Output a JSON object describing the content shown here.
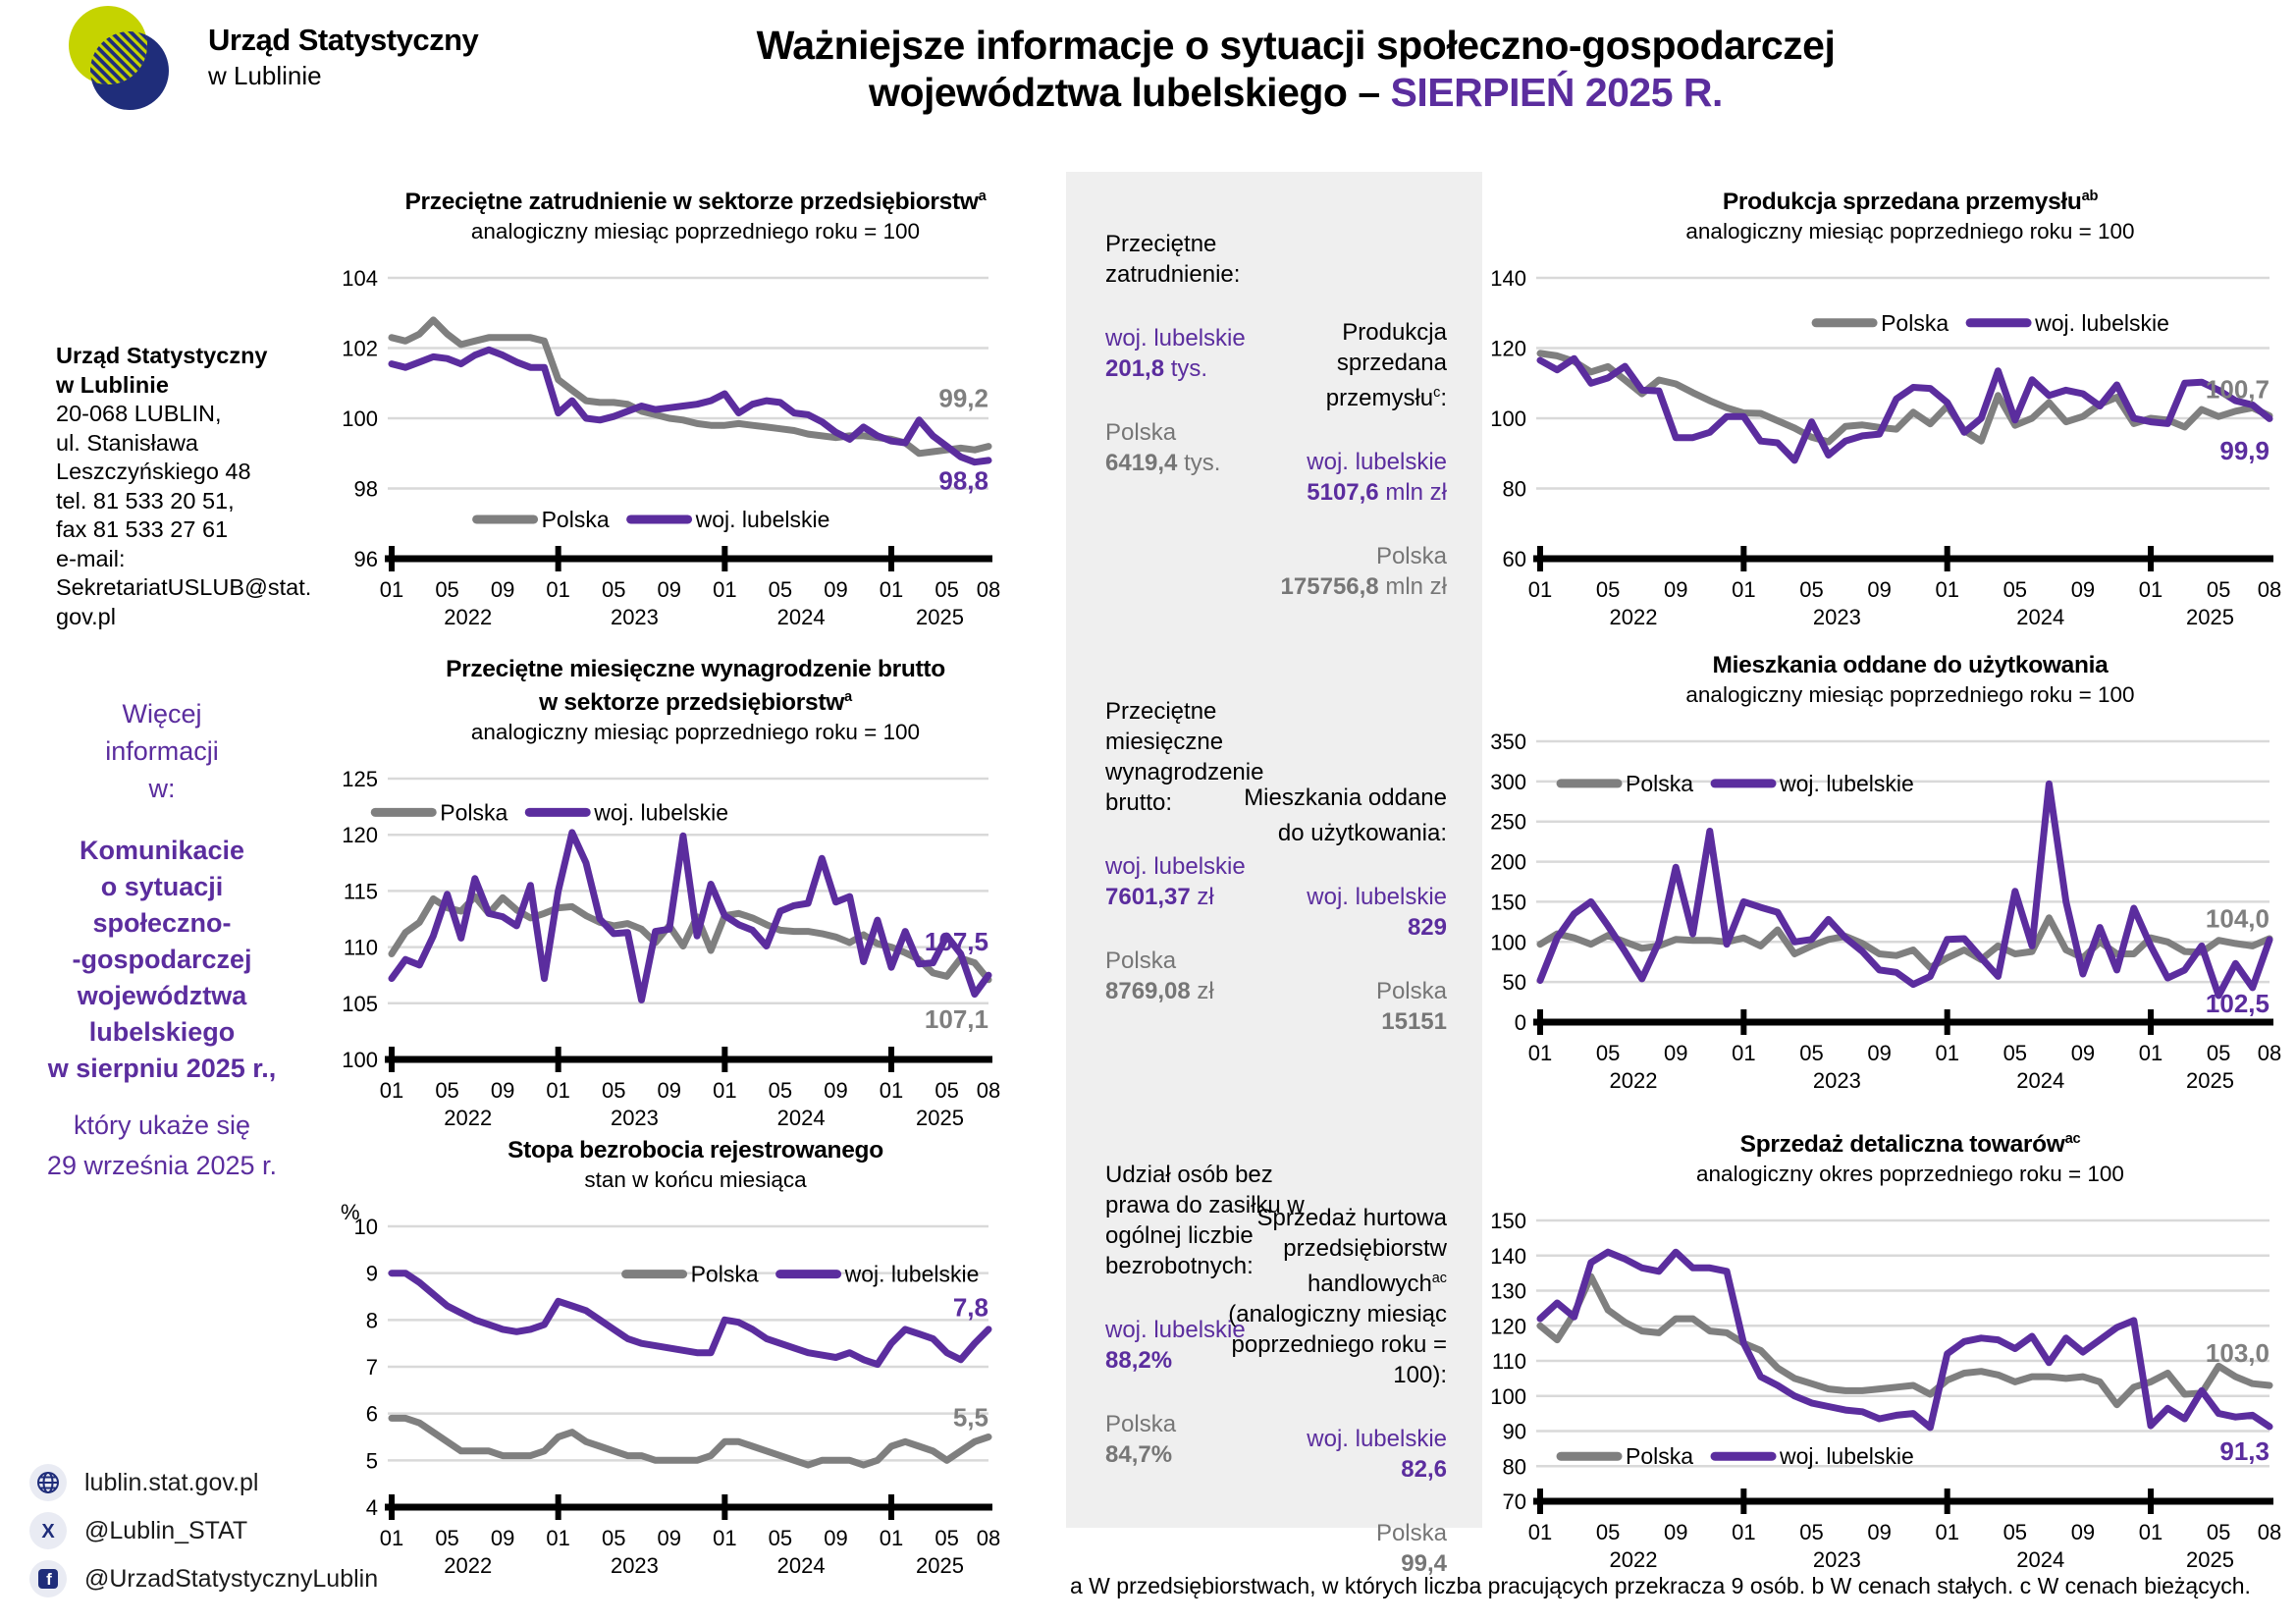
{
  "colors": {
    "purple": "#5b2d9e",
    "gray": "#7f7f7f",
    "navy": "#1f2d7a",
    "lime": "#c5d300",
    "panel_bg": "#efefef",
    "grid": "#d9d9d9"
  },
  "header": {
    "logo_line1": "Urząd Statystyczny",
    "logo_line2": "w Lublinie",
    "title_line1": "Ważniejsze informacje o sytuacji społeczno-gospodarczej",
    "title_line2_pre": "województwa lubelskiego  –  ",
    "title_line2_accent": "SIERPIEŃ 2025 R."
  },
  "sidebar": {
    "office_name": [
      "Urząd Statystyczny",
      "w Lublinie"
    ],
    "address_lines": [
      "20-068 LUBLIN,",
      "ul. Stanisława",
      "Leszczyńskiego 48",
      "tel. 81 533 20 51,",
      "fax 81 533 27 61",
      "e-mail:",
      "SekretariatUSLUB@stat.",
      "gov.pl"
    ],
    "more_info_lines": [
      "Więcej",
      "informacji",
      "w:"
    ],
    "bulletin_lines": [
      "Komunikacie",
      "o sytuacji",
      "społeczno-",
      "-gospodarczej",
      "województwa",
      "lubelskiego",
      "w sierpniu 2025 r.,"
    ],
    "release_lines": [
      "który ukaże się",
      "29 września 2025 r."
    ],
    "social": [
      {
        "icon": "globe-icon",
        "label": "lublin.stat.gov.pl"
      },
      {
        "icon": "x-icon",
        "label": "@Lublin_STAT"
      },
      {
        "icon": "facebook-icon",
        "label": "@UrzadStatystycznyLublin"
      }
    ]
  },
  "panel": {
    "sections": [
      {
        "left": {
          "title": "Przeciętne zatrudnienie:",
          "items": [
            {
              "label": "woj. lubelskie",
              "value": "201,8",
              "unit": " tys."
            },
            {
              "label": "Polska",
              "value": "6419,4",
              "unit": " tys."
            }
          ]
        },
        "right": {
          "t1": "Produkcja sprzedana przemysłu",
          "sup": "c",
          "t2": ":",
          "items": [
            {
              "label": "woj. lubelskie",
              "value": "5107,6",
              "unit": " mln zł"
            },
            {
              "label": "Polska",
              "value": "175756,8",
              "unit": " mln zł"
            }
          ]
        }
      },
      {
        "left": {
          "title": "Przeciętne miesięczne wynagrodzenie brutto:",
          "items": [
            {
              "label": "woj. lubelskie",
              "value": "7601,37",
              "unit": " zł"
            },
            {
              "label": "Polska",
              "value": "8769,08",
              "unit": " zł"
            }
          ]
        },
        "right": {
          "t1": "Mieszkania oddane do użytkowania:",
          "sup": "",
          "t2": "",
          "items": [
            {
              "label": "woj. lubelskie",
              "value": "829",
              "unit": ""
            },
            {
              "label": "Polska",
              "value": "15151",
              "unit": ""
            }
          ]
        }
      },
      {
        "left": {
          "title": "Udział osób bez prawa do zasiłku w ogólnej liczbie bezrobotnych:",
          "items": [
            {
              "label": "woj. lubelskie",
              "value": "88,2%",
              "unit": ""
            },
            {
              "label": "Polska",
              "value": "84,7%",
              "unit": ""
            }
          ]
        },
        "right": {
          "t1": "Sprzedaż hurtowa przedsiębiorstw handlowych",
          "sup": "ac",
          "t2": " (analogiczny miesiąc poprzedniego roku = 100):",
          "items": [
            {
              "label": "woj. lubelskie",
              "value": "82,6",
              "unit": ""
            },
            {
              "label": "Polska",
              "value": "99,4",
              "unit": ""
            }
          ]
        }
      }
    ]
  },
  "footnote": "a W przedsiębiorstwach, w których liczba pracujących przekracza 9 osób.  b W cenach stałych.  c W cenach bieżących.",
  "xaxis": {
    "n": 44,
    "month_labels": [
      "01",
      "05",
      "09",
      "01",
      "05",
      "09",
      "01",
      "05",
      "09",
      "01",
      "05",
      "08"
    ],
    "month_positions": [
      0,
      4,
      8,
      12,
      16,
      20,
      24,
      28,
      32,
      36,
      40,
      43
    ],
    "year_labels": [
      "2022",
      "2023",
      "2024",
      "2025"
    ],
    "year_positions": [
      5.5,
      17.5,
      29.5,
      39.5
    ],
    "year_tick_positions": [
      12,
      24,
      36
    ]
  },
  "chart_data": [
    {
      "type": "line",
      "title_lines": [
        {
          "text": "Przeciętne zatrudnienie w sektorze przedsiębiorstw",
          "sup": "a"
        }
      ],
      "subtitle": "analogiczny miesiąc poprzedniego roku = 100",
      "unit": "",
      "ylim": [
        96,
        104
      ],
      "yticks": [
        96,
        98,
        100,
        102,
        104
      ],
      "legend": {
        "fx": 0.45,
        "fy": 0.86
      },
      "series": [
        {
          "name": "Polska",
          "color": "#7f7f7f",
          "values": [
            102.3,
            102.2,
            102.4,
            102.8,
            102.4,
            102.1,
            102.2,
            102.3,
            102.3,
            102.3,
            102.3,
            102.2,
            101.1,
            100.8,
            100.5,
            100.45,
            100.45,
            100.4,
            100.2,
            100.1,
            100.0,
            99.95,
            99.85,
            99.8,
            99.8,
            99.85,
            99.8,
            99.75,
            99.7,
            99.65,
            99.55,
            99.5,
            99.45,
            99.5,
            99.5,
            99.45,
            99.4,
            99.3,
            99.0,
            99.05,
            99.1,
            99.15,
            99.1,
            99.2
          ]
        },
        {
          "name": "woj. lubelskie",
          "color": "#5b2d9e",
          "values": [
            101.55,
            101.45,
            101.6,
            101.75,
            101.7,
            101.55,
            101.8,
            101.95,
            101.8,
            101.6,
            101.45,
            101.45,
            100.15,
            100.5,
            100.0,
            99.95,
            100.05,
            100.2,
            100.35,
            100.25,
            100.3,
            100.35,
            100.4,
            100.5,
            100.7,
            100.15,
            100.4,
            100.5,
            100.45,
            100.15,
            100.1,
            99.9,
            99.6,
            99.4,
            99.75,
            99.5,
            99.35,
            99.3,
            99.95,
            99.5,
            99.2,
            98.9,
            98.75,
            98.8
          ]
        }
      ],
      "end_labels": [
        {
          "text": "99,2",
          "color": "#7f7f7f",
          "y": 100.55
        },
        {
          "text": "98,8",
          "color": "#5b2d9e",
          "y": 98.2
        }
      ]
    },
    {
      "type": "line",
      "title_lines": [
        {
          "text": "Przeciętne miesięczne wynagrodzenie brutto",
          "sup": ""
        },
        {
          "text": "w sektorze przedsiębiorstw",
          "sup": "a"
        }
      ],
      "subtitle": "analogiczny miesiąc poprzedniego roku = 100",
      "unit": "",
      "ylim": [
        100,
        125
      ],
      "yticks": [
        100,
        105,
        110,
        115,
        120,
        125
      ],
      "legend": {
        "fx": 0.28,
        "fy": 0.12
      },
      "series": [
        {
          "name": "Polska",
          "color": "#7f7f7f",
          "values": [
            109.4,
            111.3,
            112.2,
            114.3,
            113.5,
            113.2,
            114.5,
            113.0,
            114.4,
            113.3,
            112.6,
            113.0,
            113.5,
            113.6,
            112.8,
            112.2,
            111.9,
            112.1,
            111.6,
            110.4,
            111.9,
            110.1,
            112.7,
            109.7,
            112.8,
            113.0,
            112.6,
            112.0,
            111.5,
            111.4,
            111.4,
            111.2,
            110.9,
            110.4,
            111.1,
            110.3,
            110.0,
            109.5,
            108.9,
            107.7,
            107.4,
            109.0,
            108.6,
            107.1
          ]
        },
        {
          "name": "woj. lubelskie",
          "color": "#5b2d9e",
          "values": [
            107.2,
            108.9,
            108.4,
            111.0,
            114.7,
            110.8,
            116.1,
            113.0,
            112.7,
            111.9,
            115.5,
            107.2,
            115.0,
            120.2,
            117.5,
            112.5,
            111.2,
            111.3,
            105.3,
            111.4,
            111.6,
            119.9,
            111.0,
            115.6,
            112.8,
            112.0,
            111.5,
            110.1,
            113.2,
            113.7,
            113.9,
            117.9,
            114.0,
            114.5,
            108.7,
            112.4,
            108.2,
            111.4,
            108.5,
            108.6,
            111.0,
            109.4,
            105.8,
            107.5
          ]
        }
      ],
      "end_labels": [
        {
          "text": "107,5",
          "color": "#5b2d9e",
          "y": 110.4
        },
        {
          "text": "107,1",
          "color": "#7f7f7f",
          "y": 103.5
        }
      ]
    },
    {
      "type": "line",
      "title_lines": [
        {
          "text": "Stopa bezrobocia rejestrowanego",
          "sup": ""
        }
      ],
      "subtitle": "stan w końcu miesiąca",
      "unit": "%",
      "ylim": [
        4,
        10
      ],
      "yticks": [
        4,
        5,
        6,
        7,
        8,
        9,
        10
      ],
      "legend": {
        "fx": 0.7,
        "fy": 0.17
      },
      "series": [
        {
          "name": "Polska",
          "color": "#7f7f7f",
          "values": [
            5.9,
            5.9,
            5.8,
            5.6,
            5.4,
            5.2,
            5.2,
            5.2,
            5.1,
            5.1,
            5.1,
            5.2,
            5.5,
            5.6,
            5.4,
            5.3,
            5.2,
            5.1,
            5.1,
            5.0,
            5.0,
            5.0,
            5.0,
            5.1,
            5.4,
            5.4,
            5.3,
            5.2,
            5.1,
            5.0,
            4.9,
            5.0,
            5.0,
            5.0,
            4.9,
            5.0,
            5.3,
            5.4,
            5.3,
            5.2,
            5.0,
            5.2,
            5.4,
            5.5
          ]
        },
        {
          "name": "woj. lubelskie",
          "color": "#5b2d9e",
          "values": [
            9.0,
            9.0,
            8.8,
            8.55,
            8.3,
            8.15,
            8.0,
            7.9,
            7.8,
            7.75,
            7.8,
            7.9,
            8.4,
            8.3,
            8.2,
            8.0,
            7.8,
            7.6,
            7.5,
            7.45,
            7.4,
            7.35,
            7.3,
            7.3,
            8.0,
            7.95,
            7.8,
            7.6,
            7.5,
            7.4,
            7.3,
            7.25,
            7.2,
            7.3,
            7.15,
            7.05,
            7.5,
            7.8,
            7.7,
            7.6,
            7.3,
            7.15,
            7.5,
            7.8
          ]
        }
      ],
      "end_labels": [
        {
          "text": "7,8",
          "color": "#5b2d9e",
          "y": 8.25
        },
        {
          "text": "5,5",
          "color": "#7f7f7f",
          "y": 5.9
        }
      ]
    },
    {
      "type": "line",
      "title_lines": [
        {
          "text": "Produkcja sprzedana przemysłu",
          "sup": "ab"
        }
      ],
      "subtitle": "analogiczny miesiąc poprzedniego roku = 100",
      "unit": "",
      "ylim": [
        60,
        140
      ],
      "yticks": [
        60,
        80,
        100,
        120,
        140
      ],
      "legend": {
        "fx": 0.63,
        "fy": 0.16
      },
      "series": [
        {
          "name": "Polska",
          "color": "#7f7f7f",
          "values": [
            118.5,
            117.8,
            116.2,
            113.2,
            114.7,
            110.9,
            107.0,
            110.9,
            109.8,
            107.3,
            105.0,
            103.0,
            101.5,
            101.4,
            99.3,
            97.2,
            94.6,
            93.3,
            97.7,
            98.1,
            97.4,
            96.9,
            101.7,
            98.4,
            103.5,
            96.5,
            93.5,
            106.5,
            98.0,
            100.0,
            104.5,
            99.0,
            100.5,
            104.0,
            106.0,
            98.5,
            100.0,
            99.5,
            97.5,
            102.5,
            100.5,
            102.0,
            103.0,
            100.7
          ]
        },
        {
          "name": "woj. lubelskie",
          "color": "#5b2d9e",
          "values": [
            116.5,
            113.8,
            117.0,
            110.0,
            111.5,
            114.8,
            108.0,
            107.8,
            94.5,
            94.5,
            96.0,
            100.5,
            100.5,
            93.5,
            93.0,
            88.0,
            99.0,
            89.5,
            93.5,
            95.0,
            95.5,
            105.5,
            108.8,
            108.5,
            104.5,
            96.0,
            100.0,
            113.5,
            99.5,
            111.0,
            106.5,
            108.0,
            107.0,
            103.5,
            109.5,
            100.0,
            99.0,
            98.5,
            110.0,
            110.3,
            108.0,
            105.0,
            103.8,
            99.9
          ]
        }
      ],
      "end_labels": [
        {
          "text": "100,7",
          "color": "#7f7f7f",
          "y": 108.0
        },
        {
          "text": "99,9",
          "color": "#5b2d9e",
          "y": 90.5
        }
      ]
    },
    {
      "type": "line",
      "title_lines": [
        {
          "text": "Mieszkania oddane do użytkowania",
          "sup": ""
        }
      ],
      "subtitle": "analogiczny miesiąc poprzedniego roku = 100",
      "unit": "",
      "ylim": [
        0,
        350
      ],
      "yticks": [
        0,
        50,
        100,
        150,
        200,
        250,
        300,
        350
      ],
      "legend": {
        "fx": 0.28,
        "fy": 0.15
      },
      "series": [
        {
          "name": "Polska",
          "color": "#7f7f7f",
          "values": [
            97,
            110,
            105,
            97,
            108,
            100,
            92,
            95,
            103,
            102,
            102,
            100,
            105,
            95,
            115,
            85,
            95,
            103,
            107,
            98,
            85,
            83,
            90,
            68,
            80,
            90,
            78,
            95,
            85,
            88,
            130,
            90,
            80,
            100,
            85,
            85,
            105,
            100,
            88,
            87,
            102,
            98,
            95,
            104
          ]
        },
        {
          "name": "woj. lubelskie",
          "color": "#5b2d9e",
          "values": [
            52,
            105,
            135,
            150,
            120,
            88,
            54,
            100,
            193,
            110,
            238,
            97,
            150,
            143,
            137,
            100,
            103,
            128,
            105,
            88,
            65,
            62,
            47,
            57,
            103,
            104,
            80,
            57,
            163,
            95,
            297,
            150,
            60,
            118,
            65,
            142,
            95,
            55,
            65,
            95,
            33,
            73,
            43,
            102.5
          ]
        }
      ],
      "end_labels": [
        {
          "text": "104,0",
          "color": "#7f7f7f",
          "y": 128
        },
        {
          "text": "102,5",
          "color": "#5b2d9e",
          "y": 22
        }
      ]
    },
    {
      "type": "line",
      "title_lines": [
        {
          "text": "Sprzedaż detaliczna towarów",
          "sup": "ac"
        }
      ],
      "subtitle": "analogiczny okres poprzedniego roku = 100",
      "unit": "",
      "ylim": [
        70,
        150
      ],
      "yticks": [
        70,
        80,
        90,
        100,
        110,
        120,
        130,
        140,
        150
      ],
      "legend": {
        "fx": 0.28,
        "fy": 0.84
      },
      "series": [
        {
          "name": "Polska",
          "color": "#7f7f7f",
          "values": [
            120,
            116,
            123.5,
            134,
            124.5,
            121,
            118.5,
            118,
            122,
            122,
            118.5,
            118,
            115,
            113,
            108,
            105,
            103.5,
            102,
            101.5,
            101.5,
            102,
            102.5,
            103,
            100.5,
            104.5,
            106.5,
            107,
            106,
            104,
            105.5,
            105.5,
            105,
            105.5,
            104,
            97.5,
            102.5,
            104,
            106.5,
            100.5,
            100.8,
            108.5,
            105.5,
            103.5,
            103.0
          ]
        },
        {
          "name": "woj. lubelskie",
          "color": "#5b2d9e",
          "values": [
            122,
            126.5,
            122.5,
            138,
            141,
            139,
            136.5,
            135.5,
            141,
            136.5,
            136.5,
            135.5,
            115,
            105.5,
            103,
            100,
            98,
            97,
            96,
            95.5,
            93.5,
            94.5,
            95,
            91,
            112,
            115.5,
            116.5,
            116,
            113.5,
            117,
            109.5,
            116.5,
            112.5,
            116,
            119.5,
            121.5,
            91.5,
            96.5,
            93.5,
            101.5,
            95,
            94,
            94.5,
            91.3
          ]
        }
      ],
      "end_labels": [
        {
          "text": "103,0",
          "color": "#7f7f7f",
          "y": 112.0
        },
        {
          "text": "91,3",
          "color": "#5b2d9e",
          "y": 84.0
        }
      ]
    }
  ]
}
